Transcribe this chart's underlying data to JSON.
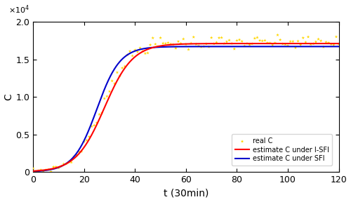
{
  "title": "",
  "xlabel": "t (30min)",
  "ylabel": "C",
  "xlim": [
    0,
    120
  ],
  "ylim": [
    0,
    20000
  ],
  "xticks": [
    0,
    20,
    40,
    60,
    80,
    100,
    120
  ],
  "yticks": [
    0,
    5000,
    10000,
    15000,
    20000
  ],
  "red_line_color": "#FF0000",
  "blue_line_color": "#0000CC",
  "scatter_color": "#FFD700",
  "legend_labels": [
    "real C",
    "estimate C under I-SFI",
    "estimate C under SFI"
  ],
  "C_max_red": 17100,
  "C_max_blue": 16700,
  "t_mid_red": 28,
  "t_mid_blue": 25,
  "k_red": 0.18,
  "k_blue": 0.22,
  "noise_seed": 7,
  "C_scatter_max": 17200,
  "t_scatter_mid": 27,
  "k_scatter": 0.19
}
